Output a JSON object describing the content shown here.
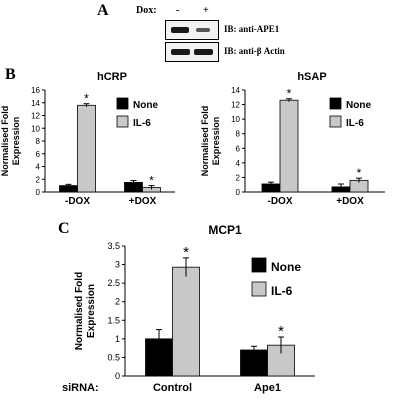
{
  "panelA": {
    "letter": "A",
    "dox_label": "Dox:",
    "conditions": [
      "-",
      "+"
    ],
    "blots": [
      {
        "label": "IB: anti-APE1"
      },
      {
        "label": "IB: anti-β Actin"
      }
    ]
  },
  "panelB": {
    "letter": "B"
  },
  "panelC": {
    "letter": "C",
    "siRNA_label": "siRNA:"
  },
  "colors": {
    "none": "#000000",
    "il6": "#c8c8c8",
    "frame": "#000000"
  },
  "chart_data": [
    {
      "type": "bar",
      "title": "hCRP",
      "ylabel": [
        "Normalised Fold",
        "Expression"
      ],
      "ylim": [
        0,
        16
      ],
      "yticks": [
        0,
        2,
        4,
        6,
        8,
        10,
        12,
        14,
        16
      ],
      "categories": [
        "-DOX",
        "+DOX"
      ],
      "legend_position": "top-right",
      "series": [
        {
          "name": "None",
          "values": [
            1.0,
            1.5
          ],
          "errors": [
            0.2,
            0.3
          ],
          "significant": [
            false,
            false
          ]
        },
        {
          "name": "IL-6",
          "values": [
            13.6,
            0.7
          ],
          "errors": [
            0.25,
            0.3
          ],
          "significant": [
            true,
            true
          ]
        }
      ]
    },
    {
      "type": "bar",
      "title": "hSAP",
      "ylabel": [
        "Normalised Fold",
        "Expression"
      ],
      "ylim": [
        0,
        14
      ],
      "yticks": [
        0,
        2,
        4,
        6,
        8,
        10,
        12,
        14
      ],
      "categories": [
        "-DOX",
        "+DOX"
      ],
      "legend_position": "top-right",
      "series": [
        {
          "name": "None",
          "values": [
            1.1,
            0.7
          ],
          "errors": [
            0.25,
            0.4
          ],
          "significant": [
            false,
            false
          ]
        },
        {
          "name": "IL-6",
          "values": [
            12.6,
            1.6
          ],
          "errors": [
            0.2,
            0.3
          ],
          "significant": [
            true,
            true
          ]
        }
      ]
    },
    {
      "type": "bar",
      "title": "MCP1",
      "ylabel": [
        "Normalised Fold",
        "Expression"
      ],
      "ylim": [
        0,
        3.5
      ],
      "yticks": [
        0,
        0.5,
        1,
        1.5,
        2,
        2.5,
        3,
        3.5
      ],
      "categories": [
        "Control",
        "Ape1"
      ],
      "legend_position": "top-right",
      "series": [
        {
          "name": "None",
          "values": [
            1.0,
            0.7
          ],
          "errors": [
            0.25,
            0.1
          ],
          "significant": [
            false,
            false
          ]
        },
        {
          "name": "IL-6",
          "values": [
            2.93,
            0.83
          ],
          "errors": [
            0.25,
            0.22
          ],
          "significant": [
            true,
            true
          ]
        }
      ]
    }
  ]
}
